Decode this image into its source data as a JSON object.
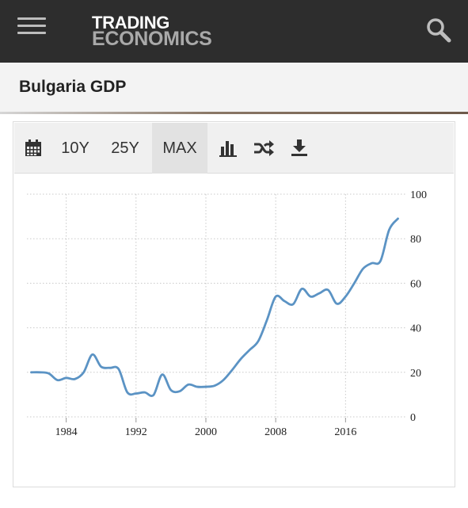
{
  "header": {
    "logo_line1": "TRADING",
    "logo_line2": "ECONOMICS",
    "menu_icon": "hamburger-menu-icon",
    "search_icon": "search-icon"
  },
  "page": {
    "title": "Bulgaria GDP"
  },
  "toolbar": {
    "calendar_icon": "calendar-icon",
    "range_10y": "10Y",
    "range_25y": "25Y",
    "range_max": "MAX",
    "selected_range": "MAX",
    "bar_chart_icon": "bar-chart-icon",
    "compare_icon": "shuffle-compare-icon",
    "download_icon": "download-icon"
  },
  "chart_data": {
    "type": "line",
    "title": "",
    "xlabel": "",
    "ylabel": "",
    "ylim": [
      0,
      100
    ],
    "xlim": [
      1979.5,
      2022.5
    ],
    "x_ticks": [
      1984,
      1992,
      2000,
      2008,
      2016
    ],
    "y_ticks": [
      0,
      20,
      40,
      60,
      80,
      100
    ],
    "y_axis_position": "right",
    "grid": true,
    "line_color": "#5b93c4",
    "series": [
      {
        "x": [
          1980,
          1981,
          1982,
          1983,
          1984,
          1985,
          1986,
          1987,
          1988,
          1989,
          1990,
          1991,
          1992,
          1993,
          1994,
          1995,
          1996,
          1997,
          1998,
          1999,
          2000,
          2001,
          2002,
          2003,
          2004,
          2005,
          2006,
          2007,
          2008,
          2009,
          2010,
          2011,
          2012,
          2013,
          2014,
          2015,
          2016,
          2017,
          2018,
          2019,
          2020,
          2021,
          2022
        ],
        "values": [
          20.0,
          20.0,
          19.5,
          16.5,
          17.5,
          17.0,
          20.0,
          28.0,
          22.5,
          22.0,
          21.5,
          11.0,
          10.5,
          11.0,
          9.8,
          19.0,
          12.0,
          11.5,
          14.5,
          13.5,
          13.5,
          14.0,
          16.5,
          21.0,
          26.0,
          30.0,
          34.0,
          43.5,
          54.0,
          52.0,
          50.6,
          57.5,
          54.0,
          55.5,
          57.0,
          50.8,
          54.0,
          60.0,
          66.5,
          69.0,
          70.0,
          84.0,
          89.0
        ]
      }
    ]
  }
}
